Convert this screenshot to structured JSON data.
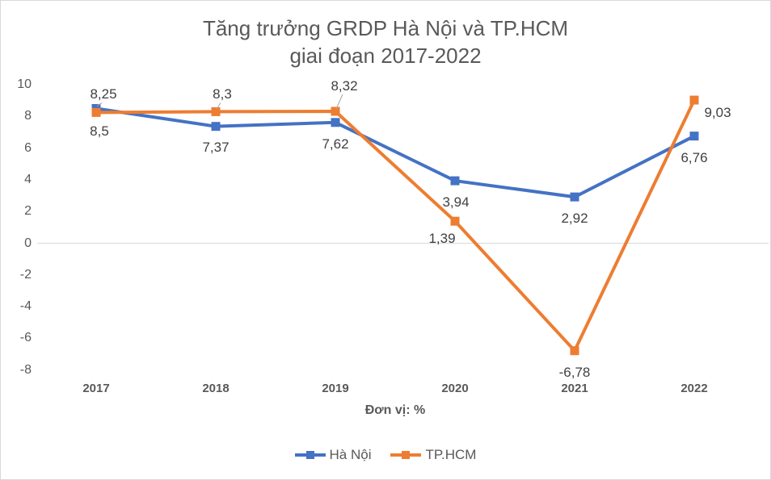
{
  "chart_data": {
    "type": "line",
    "title": "Tăng trưởng GRDP Hà Nội và TP.HCM giai đoạn 2017-2022",
    "title_line1": "Tăng trưởng GRDP Hà Nội và TP.HCM",
    "title_line2": "giai đoạn 2017-2022",
    "categories": [
      "2017",
      "2018",
      "2019",
      "2020",
      "2021",
      "2022"
    ],
    "series": [
      {
        "name": "Hà Nội",
        "color": "#4472C4",
        "values": [
          8.25,
          7.37,
          7.62,
          3.94,
          2.92,
          6.76
        ],
        "labels": [
          "8,25",
          "7,37",
          "7,62",
          "3,94",
          "2,92",
          "6,76"
        ]
      },
      {
        "name": "TP.HCM",
        "color": "#ED7D31",
        "values": [
          8.5,
          8.3,
          8.32,
          1.39,
          -6.78,
          9.03
        ],
        "labels": [
          "8,5",
          "8,3",
          "8,32",
          "1,39",
          "-6,78",
          "9,03"
        ]
      }
    ],
    "y_ticks": [
      10,
      8,
      6,
      4,
      2,
      0,
      -2,
      -4,
      -6,
      -8
    ],
    "ylim": [
      -8,
      10
    ],
    "xlabel": "Đơn vị: %",
    "ylabel": "",
    "grid": "zero-line-only",
    "gridline_color": "#D9D9D9",
    "leader_line_color": "#A6A6A6",
    "text_color": "#595959",
    "data_label_color": "#404040",
    "legend_position": "bottom",
    "marker": "square"
  }
}
